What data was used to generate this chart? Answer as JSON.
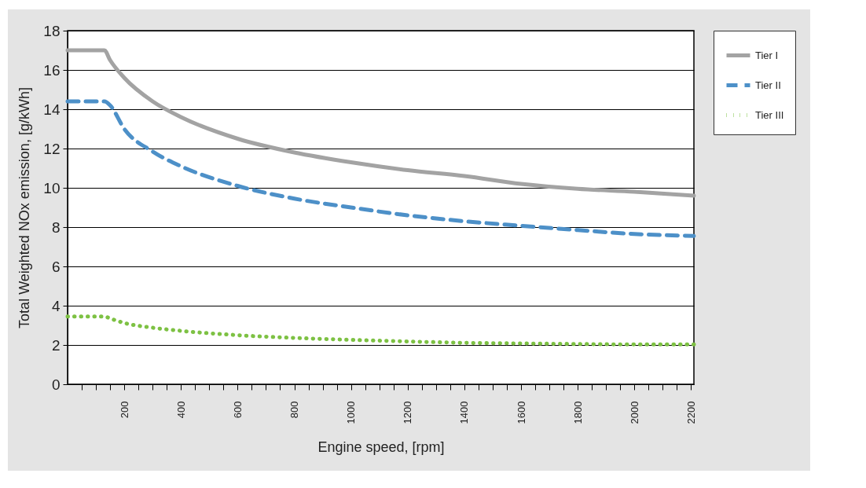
{
  "chart_data": {
    "type": "line",
    "xlabel": "Engine speed,  [rpm]",
    "ylabel": "Total Weighted NOx emission, [g/kWh]",
    "x": [
      0,
      130,
      150,
      200,
      300,
      400,
      600,
      800,
      1000,
      1200,
      1400,
      1600,
      1800,
      2000,
      2210
    ],
    "series": [
      {
        "name": "Tier  I",
        "color": "#a3a3a3",
        "line_style": "solid",
        "values": [
          17,
          17,
          16.5,
          15.6,
          14.4,
          13.6,
          12.5,
          11.8,
          11.3,
          10.9,
          10.6,
          10.2,
          9.95,
          9.8,
          9.6
        ]
      },
      {
        "name": "Tier II",
        "color": "#4d90c8",
        "line_style": "dashed",
        "values": [
          14.4,
          14.4,
          14.2,
          13.0,
          11.85,
          11.1,
          10.1,
          9.45,
          9.0,
          8.6,
          8.3,
          8.07,
          7.85,
          7.65,
          7.55
        ]
      },
      {
        "name": "Tier III",
        "color": "#7dc143",
        "line_style": "dotted",
        "values": [
          3.45,
          3.45,
          3.35,
          3.12,
          2.88,
          2.72,
          2.5,
          2.36,
          2.26,
          2.18,
          2.11,
          2.08,
          2.05,
          2.03,
          2.03
        ]
      }
    ],
    "xlim": [
      0,
      2210
    ],
    "xticks": [
      {
        "value": 50,
        "label": null
      },
      {
        "value": 100,
        "label": null
      },
      {
        "value": 150,
        "label": null
      },
      200,
      {
        "value": 250,
        "label": null
      },
      {
        "value": 300,
        "label": null
      },
      {
        "value": 350,
        "label": null
      },
      400,
      {
        "value": 450,
        "label": null
      },
      {
        "value": 500,
        "label": null
      },
      {
        "value": 550,
        "label": null
      },
      600,
      {
        "value": 650,
        "label": null
      },
      {
        "value": 700,
        "label": null
      },
      {
        "value": 750,
        "label": null
      },
      800,
      {
        "value": 850,
        "label": null
      },
      {
        "value": 900,
        "label": null
      },
      {
        "value": 950,
        "label": null
      },
      1000,
      {
        "value": 1050,
        "label": null
      },
      {
        "value": 1100,
        "label": null
      },
      {
        "value": 1150,
        "label": null
      },
      1200,
      {
        "value": 1250,
        "label": null
      },
      {
        "value": 1300,
        "label": null
      },
      {
        "value": 1350,
        "label": null
      },
      1400,
      {
        "value": 1450,
        "label": null
      },
      {
        "value": 1500,
        "label": null
      },
      {
        "value": 1550,
        "label": null
      },
      1600,
      {
        "value": 1650,
        "label": null
      },
      {
        "value": 1700,
        "label": null
      },
      {
        "value": 1750,
        "label": null
      },
      1800,
      {
        "value": 1850,
        "label": null
      },
      {
        "value": 1900,
        "label": null
      },
      {
        "value": 1950,
        "label": null
      },
      2000,
      {
        "value": 2050,
        "label": null
      },
      {
        "value": 2100,
        "label": null
      },
      {
        "value": 2150,
        "label": null
      },
      2200
    ],
    "ylim": [
      0,
      18
    ],
    "yticks": [
      0,
      2,
      4,
      6,
      8,
      10,
      12,
      14,
      16,
      18
    ],
    "grid": "y",
    "legend": "top right",
    "marker": "none"
  }
}
